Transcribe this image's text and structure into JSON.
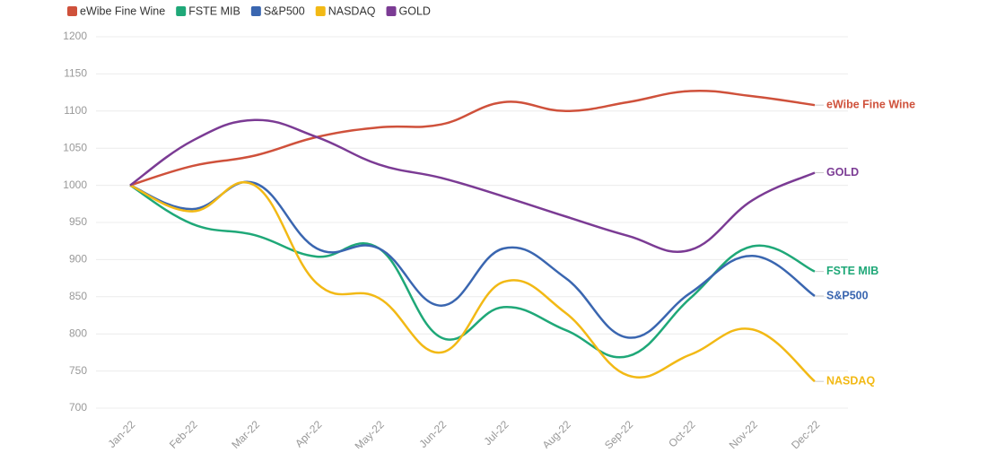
{
  "chart_data": {
    "type": "line",
    "categories": [
      "Jan-22",
      "Feb-22",
      "Mar-22",
      "Apr-22",
      "May-22",
      "Jun-22",
      "Jul-22",
      "Aug-22",
      "Sep-22",
      "Oct-22",
      "Nov-22",
      "Dec-22"
    ],
    "series": [
      {
        "name": "eWibe Fine Wine",
        "color": "#cf513b",
        "values": [
          1000,
          1026,
          1040,
          1065,
          1078,
          1082,
          1112,
          1100,
          1112,
          1127,
          1120,
          1108
        ]
      },
      {
        "name": "FSTE MIB",
        "color": "#1fa878",
        "values": [
          1000,
          948,
          933,
          904,
          915,
          795,
          836,
          805,
          770,
          848,
          918,
          884
        ]
      },
      {
        "name": "S&P500",
        "color": "#3a66b0",
        "values": [
          1000,
          968,
          1003,
          915,
          915,
          838,
          915,
          875,
          795,
          855,
          905,
          851
        ]
      },
      {
        "name": "NASDAQ",
        "color": "#f2b915",
        "values": [
          1000,
          965,
          1000,
          868,
          848,
          775,
          870,
          828,
          744,
          772,
          806,
          736
        ]
      },
      {
        "name": "GOLD",
        "color": "#7b3b94",
        "values": [
          1000,
          1060,
          1088,
          1065,
          1028,
          1010,
          985,
          958,
          932,
          913,
          980,
          1017
        ]
      }
    ],
    "ylim": [
      700,
      1200
    ],
    "yticks": [
      700,
      750,
      800,
      850,
      900,
      950,
      1000,
      1050,
      1100,
      1150,
      1200
    ],
    "grid": true
  }
}
